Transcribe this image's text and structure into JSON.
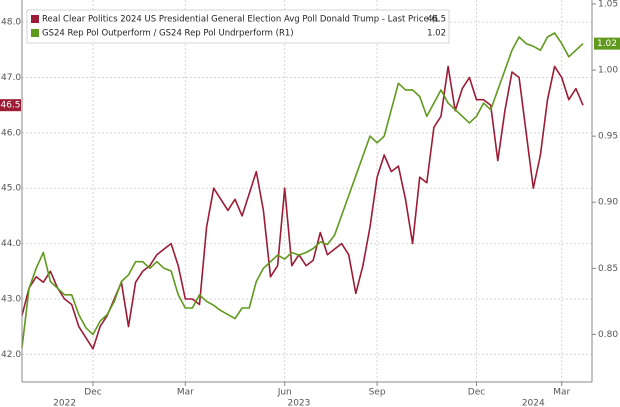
{
  "chart_data": {
    "type": "line",
    "categories": [
      null,
      null,
      null,
      null,
      null,
      null,
      null,
      null,
      null,
      null,
      "Dec",
      null,
      null,
      null,
      null,
      null,
      null,
      null,
      null,
      null,
      null,
      null,
      null,
      "Mar",
      null,
      null,
      null,
      null,
      null,
      null,
      null,
      null,
      null,
      null,
      null,
      null,
      null,
      "Jun",
      null,
      null,
      null,
      null,
      null,
      null,
      null,
      null,
      null,
      null,
      null,
      null,
      "Sep",
      null,
      null,
      null,
      null,
      null,
      null,
      null,
      null,
      null,
      null,
      null,
      null,
      null,
      "Dec",
      null,
      null,
      null,
      null,
      null,
      null,
      null,
      null,
      null,
      null,
      null,
      "Mar",
      null,
      null,
      null
    ],
    "year_categories": [
      null,
      null,
      null,
      null,
      null,
      null,
      "2022",
      null,
      null,
      null,
      null,
      null,
      null,
      null,
      null,
      null,
      null,
      null,
      null,
      null,
      null,
      null,
      null,
      null,
      null,
      null,
      null,
      null,
      null,
      null,
      null,
      null,
      null,
      null,
      null,
      null,
      null,
      null,
      null,
      "2023",
      null,
      null,
      null,
      null,
      null,
      null,
      null,
      null,
      null,
      null,
      null,
      null,
      null,
      null,
      null,
      null,
      null,
      null,
      null,
      null,
      null,
      null,
      null,
      null,
      null,
      null,
      null,
      null,
      null,
      null,
      null,
      null,
      "2024",
      null,
      null,
      null,
      null,
      null,
      null,
      null
    ],
    "series": [
      {
        "name": "Real Clear Politics 2024 US Presidential General Election Avg Poll Donald Trump - Last Price (L",
        "color": "#9c1c36",
        "axis": "y",
        "values": [
          42.7,
          43.2,
          43.4,
          43.3,
          43.5,
          43.2,
          43.0,
          42.9,
          42.5,
          42.3,
          42.1,
          42.5,
          42.7,
          43.0,
          43.3,
          42.5,
          43.3,
          43.5,
          43.6,
          43.8,
          43.9,
          44.0,
          43.6,
          43.0,
          43.0,
          42.9,
          44.3,
          45.0,
          44.8,
          44.6,
          44.8,
          44.5,
          44.9,
          45.3,
          44.6,
          43.4,
          43.6,
          45.0,
          43.6,
          43.8,
          43.6,
          43.7,
          44.2,
          43.8,
          43.9,
          44.0,
          43.8,
          43.1,
          43.6,
          44.3,
          45.2,
          45.6,
          45.3,
          45.4,
          44.8,
          44.0,
          45.2,
          45.1,
          46.1,
          46.3,
          47.2,
          46.4,
          46.8,
          47.0,
          46.6,
          46.6,
          46.5,
          45.5,
          46.4,
          47.1,
          47.0,
          46.0,
          45.0,
          45.6,
          46.6,
          47.2,
          47.0,
          46.6,
          46.8,
          46.5
        ]
      },
      {
        "name": "GS24 Rep Pol Outperform / GS24 Rep Pol Undrperform (R1)",
        "color": "#5f9a1c",
        "axis": "y2",
        "values": [
          0.79,
          0.835,
          0.85,
          0.862,
          0.84,
          0.835,
          0.83,
          0.83,
          0.815,
          0.805,
          0.8,
          0.81,
          0.815,
          0.825,
          0.84,
          0.845,
          0.855,
          0.855,
          0.85,
          0.855,
          0.85,
          0.848,
          0.83,
          0.82,
          0.82,
          0.83,
          0.825,
          0.822,
          0.818,
          0.815,
          0.812,
          0.82,
          0.82,
          0.84,
          0.85,
          0.855,
          0.86,
          0.857,
          0.862,
          0.86,
          0.862,
          0.865,
          0.87,
          0.868,
          0.875,
          0.89,
          0.905,
          0.92,
          0.935,
          0.95,
          0.945,
          0.95,
          0.97,
          0.99,
          0.985,
          0.985,
          0.98,
          0.965,
          0.975,
          0.985,
          0.975,
          0.97,
          0.965,
          0.96,
          0.965,
          0.975,
          0.97,
          0.985,
          1.0,
          1.015,
          1.025,
          1.02,
          1.018,
          1.015,
          1.025,
          1.028,
          1.02,
          1.01,
          1.015,
          1.02
        ]
      }
    ],
    "ylim": [
      41.5,
      48.4
    ],
    "yticks": [
      {
        "value": 42,
        "label": "42.0"
      },
      {
        "value": 43,
        "label": "43.0"
      },
      {
        "value": 44,
        "label": "44.0"
      },
      {
        "value": 45,
        "label": "45.0"
      },
      {
        "value": 46,
        "label": "46.0"
      },
      {
        "value": 47,
        "label": "47.0"
      },
      {
        "value": 48,
        "label": "48.0"
      }
    ],
    "y2lim": [
      0.764,
      1.053
    ],
    "y2ticks": [
      {
        "value": 0.8,
        "label": "0.80"
      },
      0.85,
      {
        "value": 0.9,
        "label": "0.90"
      },
      0.95,
      {
        "value": 1,
        "label": "1.00"
      },
      1.05
    ],
    "grid": true
  }
}
